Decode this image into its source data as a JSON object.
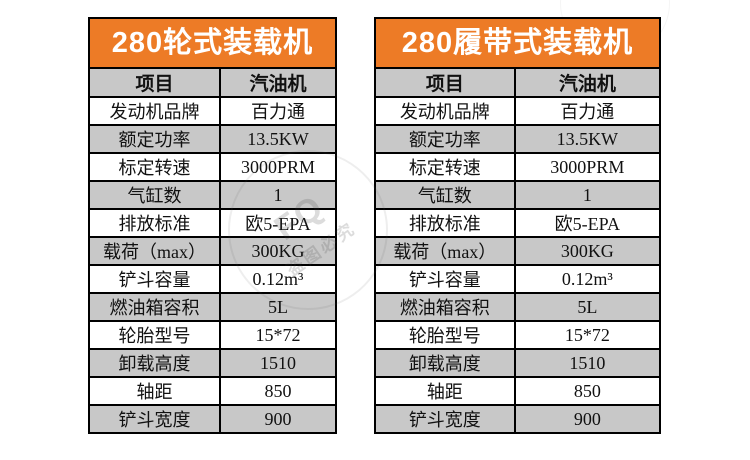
{
  "colors": {
    "banner_orange": "#ED7B26",
    "row_gray": "#C8C8C8",
    "row_white": "#FFFFFF",
    "border_black": "#000000",
    "banner_text": "#FFFFFF"
  },
  "tables": [
    {
      "title": "280轮式装载机",
      "columns": [
        "项目",
        "汽油机"
      ],
      "rows": [
        [
          "发动机品牌",
          "百力通"
        ],
        [
          "额定功率",
          "13.5KW"
        ],
        [
          "标定转速",
          "3000PRM"
        ],
        [
          "气缸数",
          "1"
        ],
        [
          "排放标准",
          "欧5-EPA"
        ],
        [
          "载荷（max）",
          "300KG"
        ],
        [
          "铲斗容量",
          "0.12m³"
        ],
        [
          "燃油箱容积",
          "5L"
        ],
        [
          "轮胎型号",
          "15*72"
        ],
        [
          "卸载高度",
          "1510"
        ],
        [
          "轴距",
          "850"
        ],
        [
          "铲斗宽度",
          "900"
        ]
      ]
    },
    {
      "title": "280履带式装载机",
      "columns": [
        "项目",
        "汽油机"
      ],
      "rows": [
        [
          "发动机品牌",
          "百力通"
        ],
        [
          "额定功率",
          "13.5KW"
        ],
        [
          "标定转速",
          "3000PRM"
        ],
        [
          "气缸数",
          "1"
        ],
        [
          "排放标准",
          "欧5-EPA"
        ],
        [
          "载荷（max）",
          "300KG"
        ],
        [
          "铲斗容量",
          "0.12m³"
        ],
        [
          "燃油箱容积",
          "5L"
        ],
        [
          "轮胎型号",
          "15*72"
        ],
        [
          "卸载高度",
          "1510"
        ],
        [
          "轴距",
          "850"
        ],
        [
          "铲斗宽度",
          "900"
        ]
      ]
    }
  ],
  "watermark": {
    "logo": "FQ",
    "text": "盗图必究"
  }
}
